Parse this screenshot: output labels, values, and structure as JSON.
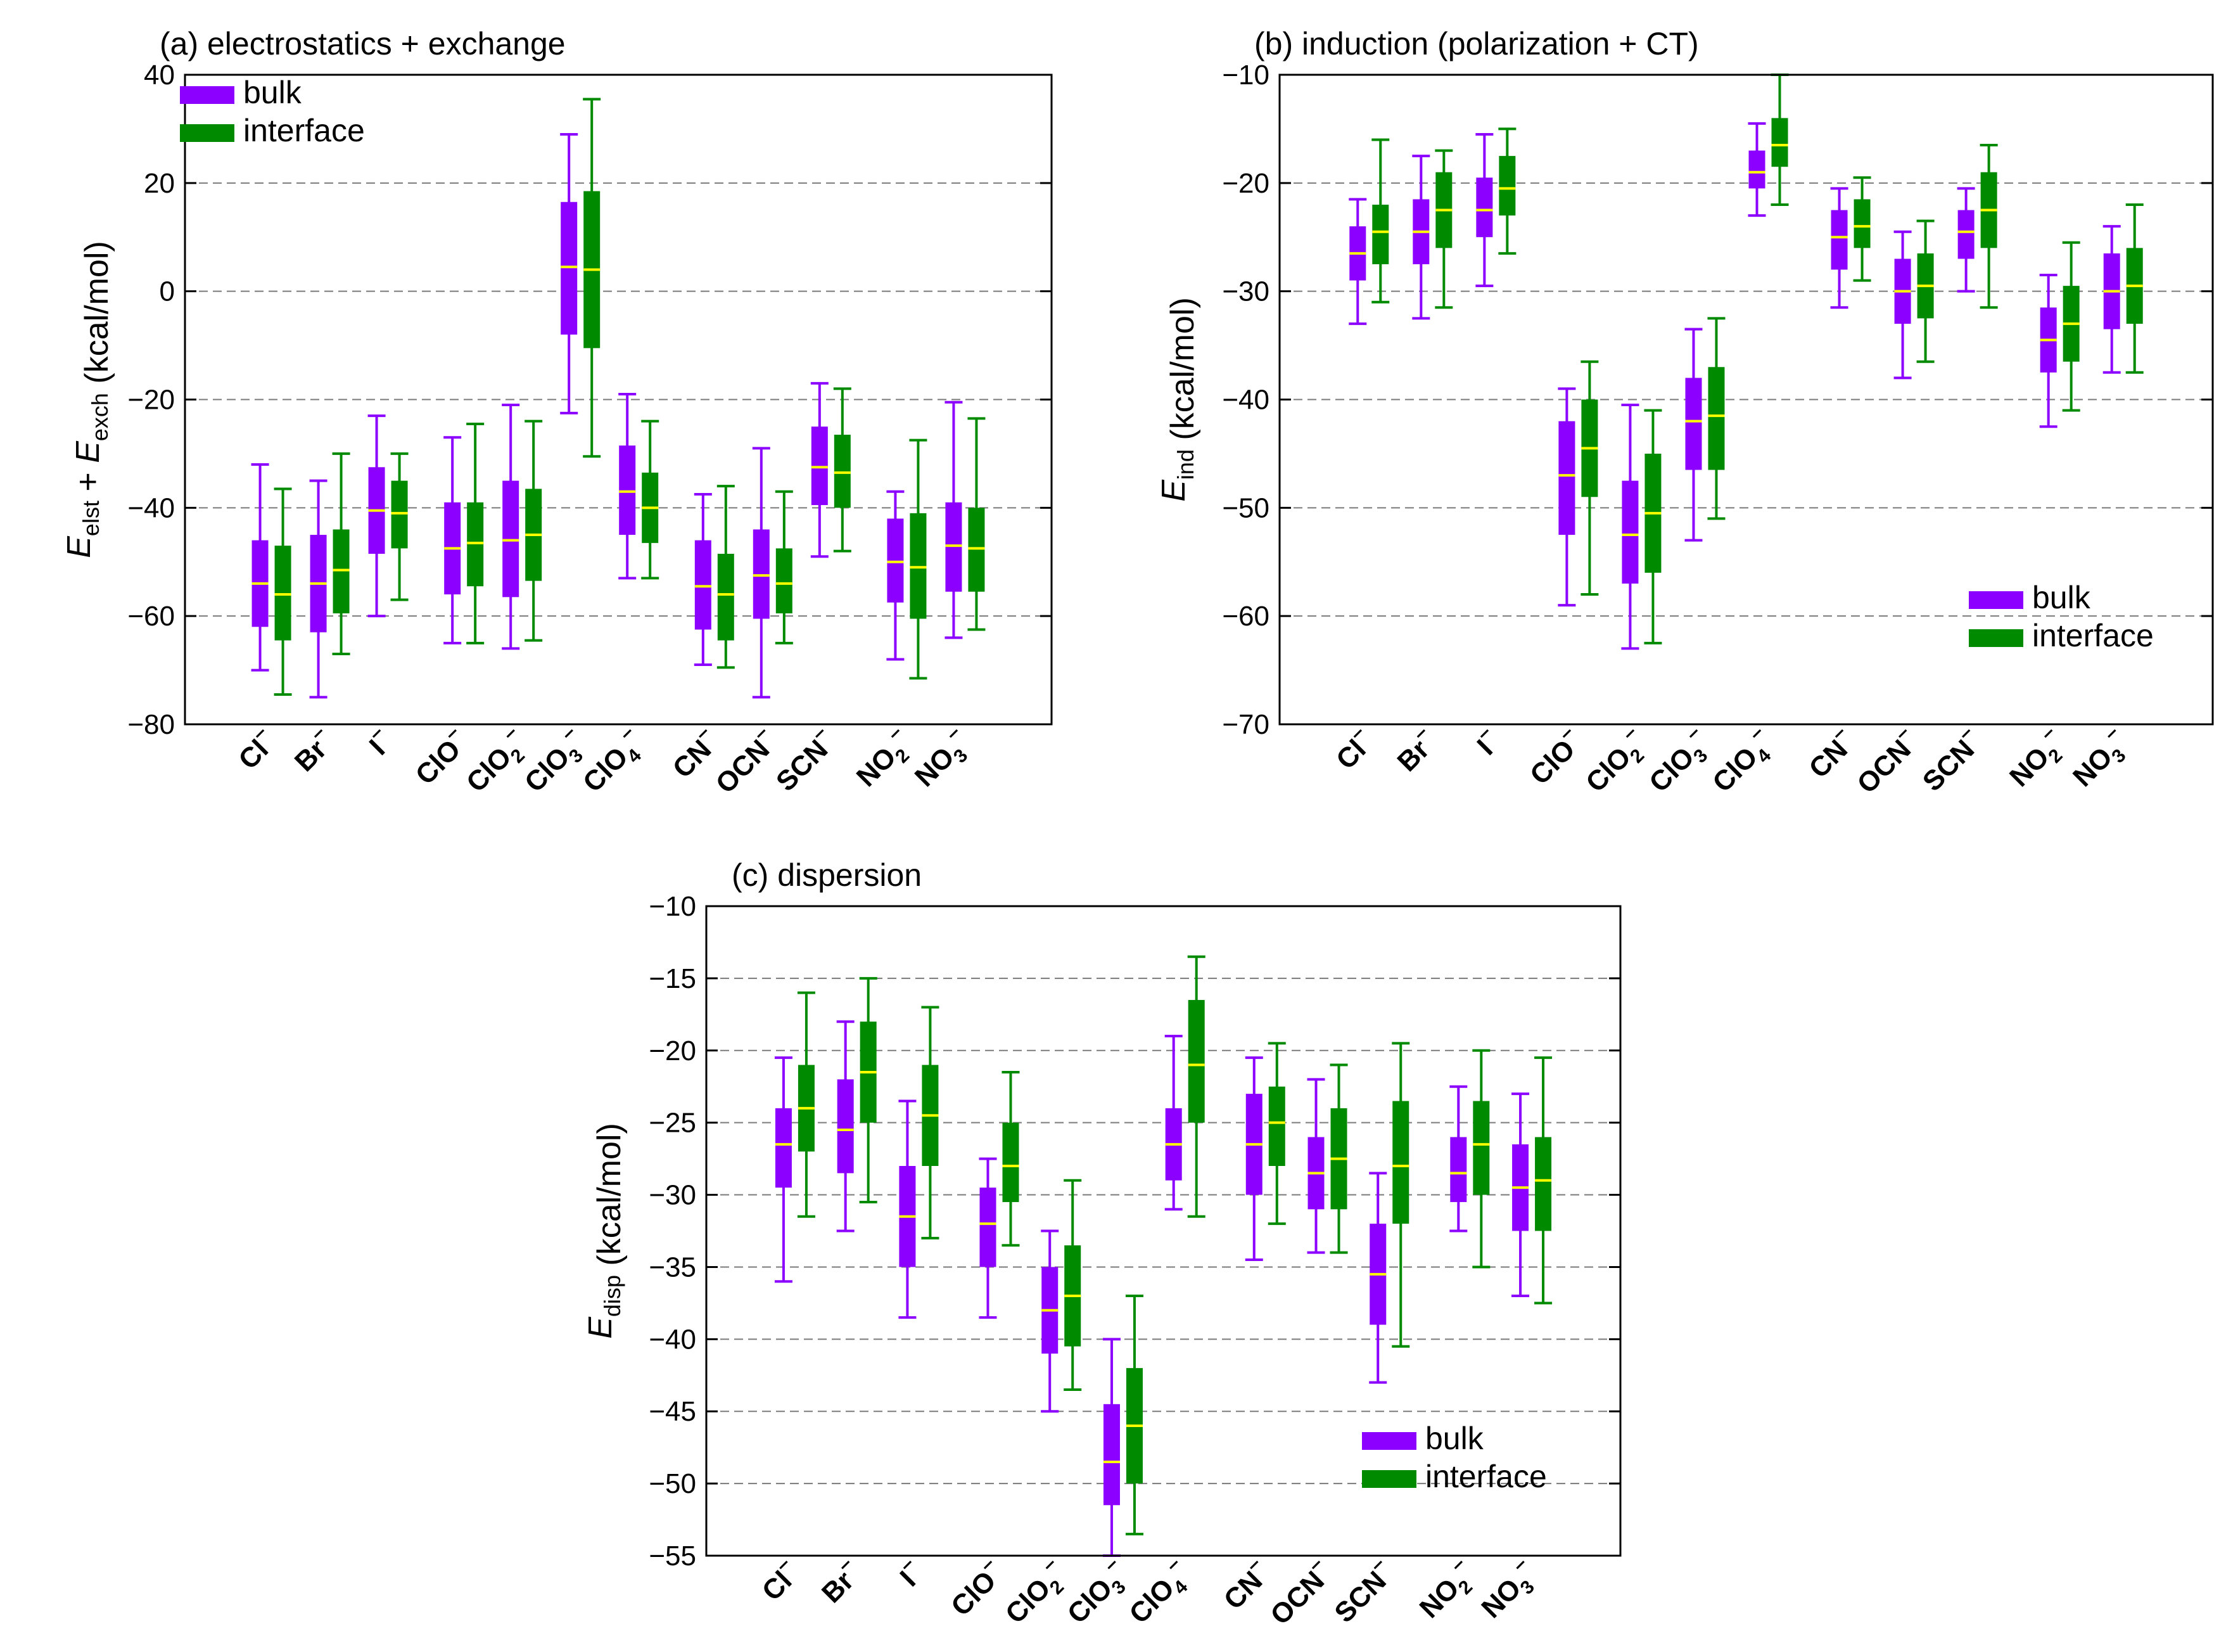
{
  "colors": {
    "bulk": "#8b00ff",
    "interface": "#008a00",
    "median": "#ffff00",
    "grid": "#7a7a7a",
    "frame": "#000000"
  },
  "legend": {
    "bulk": "bulk",
    "interface": "interface"
  },
  "categories": [
    {
      "base": "Cl",
      "sub": "",
      "sup": "–"
    },
    {
      "base": "Br",
      "sub": "",
      "sup": "–"
    },
    {
      "base": "I",
      "sub": "",
      "sup": "–"
    },
    {
      "base": "ClO",
      "sub": "",
      "sup": "–"
    },
    {
      "base": "ClO",
      "sub": "2",
      "sup": "–"
    },
    {
      "base": "ClO",
      "sub": "3",
      "sup": "–"
    },
    {
      "base": "ClO",
      "sub": "4",
      "sup": "–"
    },
    {
      "base": "CN",
      "sub": "",
      "sup": "–"
    },
    {
      "base": "OCN",
      "sub": "",
      "sup": "–"
    },
    {
      "base": "SCN",
      "sub": "",
      "sup": "–"
    },
    {
      "base": "NO",
      "sub": "2",
      "sup": "–"
    },
    {
      "base": "NO",
      "sub": "3",
      "sup": "–"
    }
  ],
  "chart_data": [
    {
      "type": "box",
      "title": "(a) electrostatics + exchange",
      "ylabel": {
        "parts": [
          {
            "t": "E",
            "i": true
          },
          {
            "t": "elst",
            "sub": true
          },
          {
            "t": " + "
          },
          {
            "t": "E",
            "i": true
          },
          {
            "t": "exch",
            "sub": true
          },
          {
            "t": " (kcal/mol)"
          }
        ]
      },
      "ylim": [
        -80,
        40
      ],
      "yticks": [
        40,
        20,
        0,
        -20,
        -40,
        -60,
        -80
      ],
      "legend_position": "top-left",
      "series": [
        {
          "name": "bulk",
          "boxes": [
            [
              -70,
              -62,
              -54,
              -46,
              -32
            ],
            [
              -75,
              -63,
              -54,
              -45,
              -35
            ],
            [
              -60,
              -48.5,
              -40.5,
              -32.5,
              -23
            ],
            [
              -65,
              -56,
              -47.5,
              -39,
              -27
            ],
            [
              -66,
              -56.5,
              -46,
              -35,
              -21
            ],
            [
              -22.5,
              -8,
              4.5,
              16.5,
              29
            ],
            [
              -53,
              -45,
              -37,
              -28.5,
              -19
            ],
            [
              -69,
              -62.5,
              -54.5,
              -46,
              -37.5
            ],
            [
              -75,
              -60.5,
              -52.5,
              -44,
              -29
            ],
            [
              -49,
              -39.5,
              -32.5,
              -25,
              -17
            ],
            [
              -68,
              -57.5,
              -50,
              -42,
              -37
            ],
            [
              -64,
              -55.5,
              -47,
              -39,
              -20.5
            ]
          ]
        },
        {
          "name": "interface",
          "boxes": [
            [
              -74.5,
              -64.5,
              -56,
              -47,
              -36.5
            ],
            [
              -67,
              -59.5,
              -51.5,
              -44,
              -30
            ],
            [
              -57,
              -47.5,
              -41,
              -35,
              -30
            ],
            [
              -65,
              -54.5,
              -46.5,
              -39,
              -24.5
            ],
            [
              -64.5,
              -53.5,
              -45,
              -36.5,
              -24
            ],
            [
              -30.5,
              -10.5,
              4,
              18.5,
              35.5
            ],
            [
              -53,
              -46.5,
              -40,
              -33.5,
              -24
            ],
            [
              -69.5,
              -64.5,
              -56,
              -48.5,
              -36
            ],
            [
              -65,
              -59.5,
              -54,
              -47.5,
              -37
            ],
            [
              -48,
              -40,
              -33.5,
              -26.5,
              -18
            ],
            [
              -71.5,
              -60.5,
              -51,
              -41,
              -27.5
            ],
            [
              -62.5,
              -55.5,
              -47.5,
              -40,
              -23.5
            ]
          ]
        }
      ]
    },
    {
      "type": "box",
      "title": "(b) induction (polarization + CT)",
      "ylabel": {
        "parts": [
          {
            "t": "E",
            "i": true
          },
          {
            "t": "ind",
            "sub": true
          },
          {
            "t": "  (kcal/mol)"
          }
        ]
      },
      "ylim": [
        -70,
        -10
      ],
      "yticks": [
        -10,
        -20,
        -30,
        -40,
        -50,
        -60,
        -70
      ],
      "legend_position": "bottom-right",
      "series": [
        {
          "name": "bulk",
          "boxes": [
            [
              -33,
              -29,
              -26.5,
              -24,
              -21.5
            ],
            [
              -32.5,
              -27.5,
              -24.5,
              -21.5,
              -17.5
            ],
            [
              -29.5,
              -25,
              -22.5,
              -19.5,
              -15.5
            ],
            [
              -59,
              -52.5,
              -47,
              -42,
              -39
            ],
            [
              -63,
              -57,
              -52.5,
              -47.5,
              -40.5
            ],
            [
              -53,
              -46.5,
              -42,
              -38,
              -33.5
            ],
            [
              -23,
              -20.5,
              -19,
              -17,
              -14.5
            ],
            [
              -31.5,
              -28,
              -25,
              -22.5,
              -20.5
            ],
            [
              -38,
              -33,
              -30,
              -27,
              -24.5
            ],
            [
              -30,
              -27,
              -24.5,
              -22.5,
              -20.5
            ],
            [
              -42.5,
              -37.5,
              -34.5,
              -31.5,
              -28.5
            ],
            [
              -37.5,
              -33.5,
              -30,
              -26.5,
              -24
            ]
          ]
        },
        {
          "name": "interface",
          "boxes": [
            [
              -31,
              -27.5,
              -24.5,
              -22,
              -16
            ],
            [
              -31.5,
              -26,
              -22.5,
              -19,
              -17
            ],
            [
              -26.5,
              -23,
              -20.5,
              -17.5,
              -15
            ],
            [
              -58,
              -49,
              -44.5,
              -40,
              -36.5
            ],
            [
              -62.5,
              -56,
              -50.5,
              -45,
              -41
            ],
            [
              -51,
              -46.5,
              -41.5,
              -37,
              -32.5
            ],
            [
              -22,
              -18.5,
              -16.5,
              -14,
              -10
            ],
            [
              -29,
              -26,
              -24,
              -21.5,
              -19.5
            ],
            [
              -36.5,
              -32.5,
              -29.5,
              -26.5,
              -23.5
            ],
            [
              -31.5,
              -26,
              -22.5,
              -19,
              -16.5
            ],
            [
              -41,
              -36.5,
              -33,
              -29.5,
              -25.5
            ],
            [
              -37.5,
              -33,
              -29.5,
              -26,
              -22
            ]
          ]
        }
      ]
    },
    {
      "type": "box",
      "title": "(c) dispersion",
      "ylabel": {
        "parts": [
          {
            "t": "E",
            "i": true
          },
          {
            "t": "disp",
            "sub": true
          },
          {
            "t": "  (kcal/mol)"
          }
        ]
      },
      "ylim": [
        -55,
        -10
      ],
      "yticks": [
        -10,
        -15,
        -20,
        -25,
        -30,
        -35,
        -40,
        -45,
        -50,
        -55
      ],
      "legend_position": "bottom-right",
      "series": [
        {
          "name": "bulk",
          "boxes": [
            [
              -36,
              -29.5,
              -26.5,
              -24,
              -20.5
            ],
            [
              -32.5,
              -28.5,
              -25.5,
              -22,
              -18
            ],
            [
              -38.5,
              -35,
              -31.5,
              -28,
              -23.5
            ],
            [
              -38.5,
              -35,
              -32,
              -29.5,
              -27.5
            ],
            [
              -45,
              -41,
              -38,
              -35,
              -32.5
            ],
            [
              -55,
              -51.5,
              -48.5,
              -44.5,
              -40
            ],
            [
              -31,
              -29,
              -26.5,
              -24,
              -19
            ],
            [
              -34.5,
              -30,
              -26.5,
              -23,
              -20.5
            ],
            [
              -34,
              -31,
              -28.5,
              -26,
              -22
            ],
            [
              -43,
              -39,
              -35.5,
              -32,
              -28.5
            ],
            [
              -32.5,
              -30.5,
              -28.5,
              -26,
              -22.5
            ],
            [
              -37,
              -32.5,
              -29.5,
              -26.5,
              -23
            ]
          ]
        },
        {
          "name": "interface",
          "boxes": [
            [
              -31.5,
              -27,
              -24,
              -21,
              -16
            ],
            [
              -30.5,
              -25,
              -21.5,
              -18,
              -15
            ],
            [
              -33,
              -28,
              -24.5,
              -21,
              -17
            ],
            [
              -33.5,
              -30.5,
              -28,
              -25,
              -21.5
            ],
            [
              -43.5,
              -40.5,
              -37,
              -33.5,
              -29
            ],
            [
              -53.5,
              -50,
              -46,
              -42,
              -37
            ],
            [
              -31.5,
              -25,
              -21,
              -16.5,
              -13.5
            ],
            [
              -32,
              -28,
              -25,
              -22.5,
              -19.5
            ],
            [
              -34,
              -31,
              -27.5,
              -24,
              -21
            ],
            [
              -40.5,
              -32,
              -28,
              -23.5,
              -19.5
            ],
            [
              -35,
              -30,
              -26.5,
              -23.5,
              -20
            ],
            [
              -37.5,
              -32.5,
              -29,
              -26,
              -20.5
            ]
          ]
        }
      ]
    }
  ]
}
